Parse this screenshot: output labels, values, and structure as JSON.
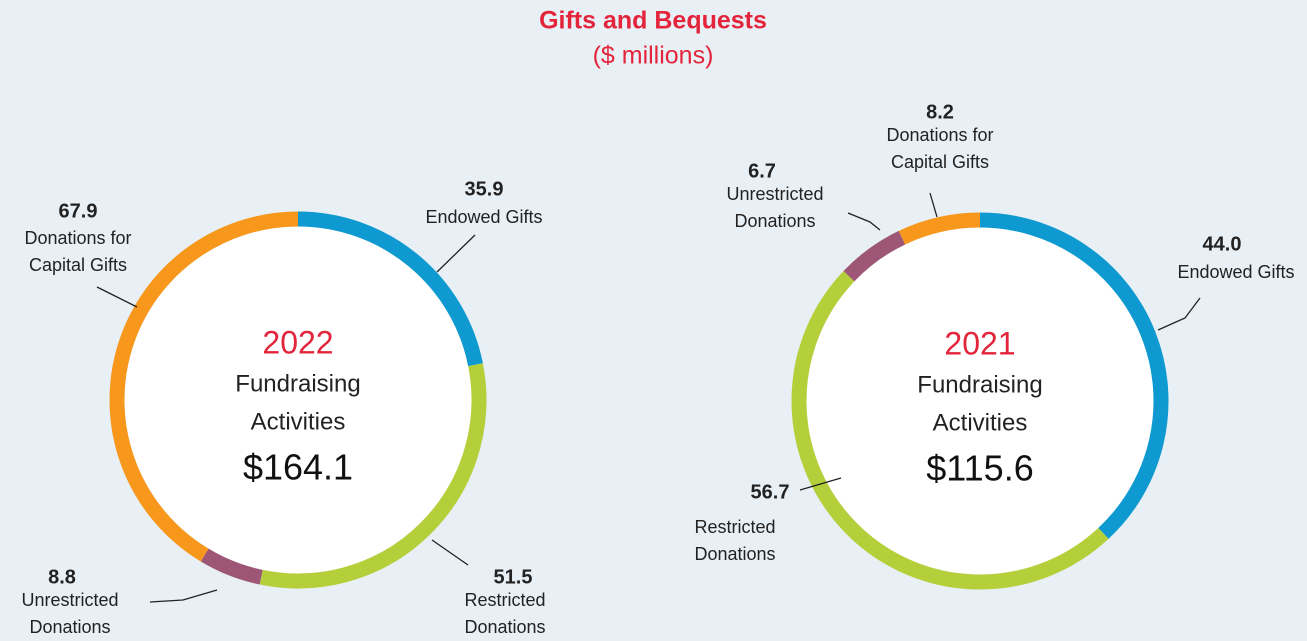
{
  "title": "Gifts and Bequests",
  "subtitle": "($ millions)",
  "chart_data": [
    {
      "type": "donut",
      "center_label": "2022",
      "center_lines": [
        "Fundraising",
        "Activities"
      ],
      "total": 164.1,
      "total_label": "$164.1",
      "categories": [
        "Endowed Gifts",
        "Restricted Donations",
        "Unrestricted Donations",
        "Donations for Capital Gifts"
      ],
      "values": [
        35.9,
        51.5,
        8.8,
        67.9
      ],
      "value_labels": [
        "35.9",
        "51.5",
        "8.8",
        "67.9"
      ],
      "colors": [
        "#0e9ad0",
        "#b5cf3a",
        "#9e5677",
        "#f7981d"
      ]
    },
    {
      "type": "donut",
      "center_label": "2021",
      "center_lines": [
        "Fundraising",
        "Activities"
      ],
      "total": 115.6,
      "total_label": "$115.6",
      "categories": [
        "Endowed Gifts",
        "Restricted Donations",
        "Unrestricted Donations",
        "Donations for Capital Gifts"
      ],
      "values": [
        44.0,
        56.7,
        6.7,
        8.2
      ],
      "value_labels": [
        "44.0",
        "56.7",
        "6.7",
        "8.2"
      ],
      "colors": [
        "#0e9ad0",
        "#b5cf3a",
        "#9e5677",
        "#f7981d"
      ]
    }
  ]
}
